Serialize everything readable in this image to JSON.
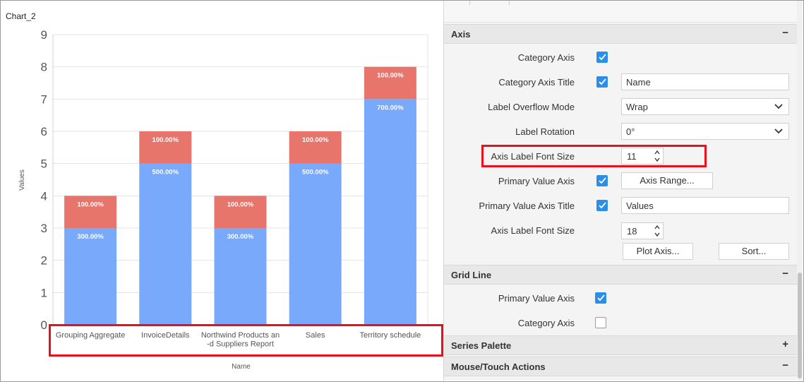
{
  "chart": {
    "name": "Chart_2"
  },
  "chart_data": {
    "type": "bar",
    "stacked": true,
    "categories": [
      "Grouping Aggregate",
      "InvoiceDetails",
      "Northwind Products an\n-d Suppliers Report",
      "Sales",
      "Territory schedule"
    ],
    "category_lines": [
      [
        "Grouping Aggregate"
      ],
      [
        "InvoiceDetails"
      ],
      [
        "Northwind Products an",
        "-d Suppliers Report"
      ],
      [
        "Sales"
      ],
      [
        "Territory schedule"
      ]
    ],
    "series": [
      {
        "values": [
          3,
          5,
          3,
          5,
          7
        ],
        "labels": [
          "300.00%",
          "500.00%",
          "300.00%",
          "500.00%",
          "700.00%"
        ],
        "color": "#78a9fb"
      },
      {
        "values": [
          1,
          1,
          1,
          1,
          1
        ],
        "labels": [
          "100.00%",
          "100.00%",
          "100.00%",
          "100.00%",
          "100.00%"
        ],
        "color": "#e8756b"
      }
    ],
    "xlabel": "Name",
    "ylabel": "Values",
    "ylim": [
      0,
      9
    ],
    "yticks": [
      0,
      1,
      2,
      3,
      4,
      5,
      6,
      7,
      8,
      9
    ],
    "grid": true,
    "legend": "none"
  },
  "props": {
    "axis": {
      "header": "Axis",
      "toggle": "−",
      "category_axis": {
        "label": "Category Axis",
        "checked": true
      },
      "category_axis_title": {
        "label": "Category Axis Title",
        "checked": true,
        "value": "Name"
      },
      "label_overflow_mode": {
        "label": "Label Overflow Mode",
        "value": "Wrap"
      },
      "label_rotation": {
        "label": "Label Rotation",
        "value": "0°"
      },
      "axis_label_font_size": {
        "label": "Axis Label Font Size",
        "value": "11"
      },
      "primary_value_axis": {
        "label": "Primary Value Axis",
        "checked": true,
        "button": "Axis Range..."
      },
      "primary_value_axis_title": {
        "label": "Primary Value Axis Title",
        "checked": true,
        "value": "Values"
      },
      "value_axis_label_font_size": {
        "label": "Axis Label Font Size",
        "value": "18"
      },
      "plot_axis_button": "Plot Axis...",
      "sort_button": "Sort..."
    },
    "grid_line": {
      "header": "Grid Line",
      "toggle": "−",
      "primary_value_axis": {
        "label": "Primary Value Axis",
        "checked": true
      },
      "category_axis": {
        "label": "Category Axis",
        "checked": false
      }
    },
    "series_palette": {
      "header": "Series Palette",
      "toggle": "+"
    },
    "mouse_touch": {
      "header": "Mouse/Touch Actions",
      "toggle": "−"
    }
  },
  "colors": {
    "accent": "#2b8ee8",
    "highlight": "#e8101a"
  }
}
